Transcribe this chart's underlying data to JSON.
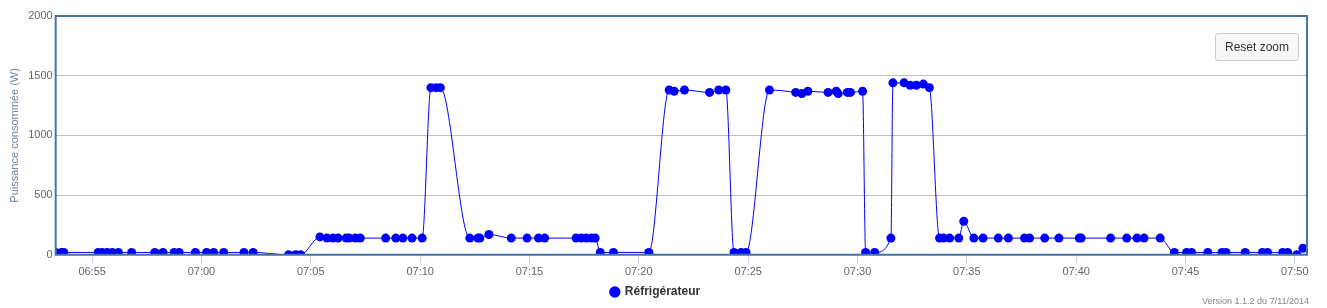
{
  "chart_data": {
    "type": "line",
    "ylabel": "Puissance consommée (W)",
    "legend": "bottom",
    "grid": "y",
    "marker": "circle",
    "xlim": [
      6.8889,
      7.8426
    ],
    "xticks": [
      {
        "value": 6.9167,
        "label": "06:55"
      },
      {
        "value": 7,
        "label": "07:00"
      },
      {
        "value": 7.0833,
        "label": "07:05"
      },
      {
        "value": 7.1667,
        "label": "07:10"
      },
      {
        "value": 7.25,
        "label": "07:15"
      },
      {
        "value": 7.3333,
        "label": "07:20"
      },
      {
        "value": 7.4167,
        "label": "07:25"
      },
      {
        "value": 7.5,
        "label": "07:30"
      },
      {
        "value": 7.5833,
        "label": "07:35"
      },
      {
        "value": 7.6667,
        "label": "07:40"
      },
      {
        "value": 7.75,
        "label": "07:45"
      },
      {
        "value": 7.8333,
        "label": "07:50"
      }
    ],
    "ylim": [
      0,
      2000
    ],
    "yticks": [
      0,
      500,
      1000,
      1500,
      2000
    ],
    "annotations": [
      "Reset zoom",
      "Version 1.1.2 du 7/11/2014"
    ],
    "series": [
      {
        "name": "Réfrigérateur",
        "color": "#0000ff",
        "x": [
          6.8889,
          6.8933,
          6.8951,
          6.9213,
          6.9244,
          6.9282,
          6.9321,
          6.9367,
          6.9468,
          6.9645,
          6.9707,
          6.9792,
          6.983,
          6.9954,
          7.0039,
          7.0093,
          7.017,
          7.0324,
          7.0394,
          7.0664,
          7.0718,
          7.0756,
          7.0903,
          7.0957,
          7.1003,
          7.1042,
          7.1103,
          7.1126,
          7.1173,
          7.1211,
          7.1404,
          7.1481,
          7.1535,
          7.1605,
          7.1682,
          7.1749,
          7.1788,
          7.1821,
          7.2045,
          7.2106,
          7.2122,
          7.2191,
          7.2361,
          7.2482,
          7.2569,
          7.2616,
          7.2855,
          7.2894,
          7.2932,
          7.2971,
          7.3001,
          7.304,
          7.314,
          7.341,
          7.3565,
          7.3603,
          7.3681,
          7.3873,
          7.3943,
          7.3997,
          7.4059,
          7.4113,
          7.4151,
          7.4329,
          7.4529,
          7.4576,
          7.4622,
          7.4776,
          7.4838,
          7.4853,
          7.4923,
          7.4946,
          7.5039,
          7.5062,
          7.5131,
          7.5255,
          7.527,
          7.5355,
          7.5401,
          7.5448,
          7.5502,
          7.5548,
          7.5625,
          7.5656,
          7.5702,
          7.5772,
          7.581,
          7.5887,
          7.5957,
          7.6073,
          7.615,
          7.6273,
          7.6312,
          7.6427,
          7.6535,
          7.669,
          7.6705,
          7.6929,
          7.7052,
          7.713,
          7.7184,
          7.7307,
          7.7415,
          7.7508,
          7.7546,
          7.767,
          7.7778,
          7.7809,
          7.7955,
          7.8086,
          7.8125,
          7.8241,
          7.8279,
          7.8349,
          7.8395
        ],
        "values": [
          20,
          20,
          20,
          20,
          20,
          20,
          20,
          20,
          20,
          20,
          20,
          20,
          20,
          20,
          20,
          20,
          20,
          20,
          20,
          0,
          0,
          0,
          150,
          140,
          140,
          140,
          140,
          140,
          140,
          140,
          140,
          140,
          140,
          140,
          140,
          1400,
          1400,
          1400,
          140,
          140,
          140,
          170,
          140,
          140,
          140,
          140,
          140,
          140,
          140,
          140,
          140,
          20,
          20,
          20,
          1380,
          1370,
          1380,
          1360,
          1380,
          1380,
          20,
          20,
          20,
          1380,
          1360,
          1350,
          1370,
          1360,
          1370,
          1350,
          1360,
          1360,
          1370,
          20,
          20,
          140,
          1440,
          1440,
          1420,
          1420,
          1430,
          1400,
          140,
          140,
          140,
          140,
          280,
          140,
          140,
          140,
          140,
          140,
          140,
          140,
          140,
          140,
          140,
          140,
          140,
          140,
          140,
          140,
          20,
          20,
          20,
          20,
          20,
          20,
          20,
          20,
          20,
          20,
          20,
          0,
          55
        ]
      }
    ]
  }
}
